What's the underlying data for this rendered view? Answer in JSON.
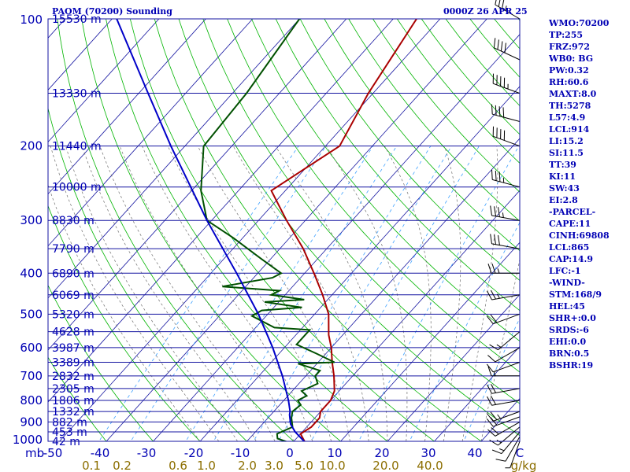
{
  "header": {
    "station": "PAOM (70200) Sounding",
    "time": "0000Z 26 APR 25"
  },
  "indices": [
    "WMO:70200",
    "TP:255",
    "FRZ:972",
    "WB0: BG",
    "PW:0.32",
    "RH:60.6",
    "MAXT:8.0",
    "TH:5278",
    "L57:4.9",
    "LCL:914",
    "LI:15.2",
    "SI:11.5",
    "TT:39",
    "KI:11",
    "SW:43",
    "EI:2.8",
    "-PARCEL-",
    "CAPE:11",
    "CINH:69808",
    "LCL:865",
    "CAP:14.9",
    "LFC:-1",
    "-WIND-",
    "STM:168/9",
    "HEL:45",
    "SHR+:0.0",
    "SRDS:-6",
    "EHI:0.0",
    "BRN:0.5",
    "BSHR:19"
  ],
  "colors": {
    "isobar": "#1414a0",
    "isotherm": "#1414a0",
    "dry_adiabat": "#00b400",
    "moist_adiabat": "#707070",
    "mixing_ratio": "#3ca0ff",
    "temperature": "#aa0000",
    "dewpoint": "#005000",
    "parcel": "#0000c8",
    "text": "#0000b4",
    "mixing_label": "#8c6e00",
    "wind": "#000000"
  },
  "chart_data": {
    "type": "line",
    "title": "PAOM (70200) Sounding",
    "xlabel": "",
    "ylabel": "mb",
    "pressure_levels": [
      100,
      200,
      300,
      400,
      500,
      600,
      700,
      800,
      900,
      1000
    ],
    "pressure_ticks": [
      "100",
      "200",
      "300",
      "400",
      "500",
      "600",
      "700",
      "800",
      "900",
      "1000"
    ],
    "extra_isobars": [
      150,
      250,
      350,
      450,
      550,
      650,
      750,
      850,
      950
    ],
    "temperature_ticks": [
      "-50",
      "-40",
      "-30",
      "-20",
      "-10",
      "0",
      "10",
      "20",
      "30",
      "40",
      "C"
    ],
    "mixing_ratio_ticks": [
      "0.1",
      "0.2",
      "0.6",
      "1.0",
      "2.0",
      "3.0",
      "5.0",
      "10.0",
      "20.0",
      "40.0",
      "g/kg"
    ],
    "height_labels": [
      {
        "p": 100,
        "label": "15530 m"
      },
      {
        "p": 150,
        "label": "13330 m"
      },
      {
        "p": 200,
        "label": "11440 m"
      },
      {
        "p": 250,
        "label": "10000 m"
      },
      {
        "p": 300,
        "label": "8830 m"
      },
      {
        "p": 350,
        "label": "7790 m"
      },
      {
        "p": 400,
        "label": "6890 m"
      },
      {
        "p": 450,
        "label": "6069 m"
      },
      {
        "p": 500,
        "label": "5320 m"
      },
      {
        "p": 550,
        "label": "4628 m"
      },
      {
        "p": 600,
        "label": "3987 m"
      },
      {
        "p": 650,
        "label": "3389 m"
      },
      {
        "p": 700,
        "label": "2832 m"
      },
      {
        "p": 750,
        "label": "2305 m"
      },
      {
        "p": 800,
        "label": "1806 m"
      },
      {
        "p": 850,
        "label": "1332 m"
      },
      {
        "p": 900,
        "label": "882 m"
      },
      {
        "p": 950,
        "label": "453 m"
      },
      {
        "p": 1000,
        "label": "42 m"
      }
    ],
    "series": [
      {
        "name": "Temperature",
        "points": [
          {
            "p": 1005,
            "t": 2.6
          },
          {
            "p": 960,
            "t": 0.0
          },
          {
            "p": 925,
            "t": 1.0
          },
          {
            "p": 880,
            "t": 1.0
          },
          {
            "p": 850,
            "t": 0.0
          },
          {
            "p": 800,
            "t": 0.0
          },
          {
            "p": 760,
            "t": -1.0
          },
          {
            "p": 700,
            "t": -4.0
          },
          {
            "p": 650,
            "t": -7.0
          },
          {
            "p": 600,
            "t": -10.0
          },
          {
            "p": 560,
            "t": -13.0
          },
          {
            "p": 500,
            "t": -17.0
          },
          {
            "p": 450,
            "t": -22.0
          },
          {
            "p": 400,
            "t": -28.0
          },
          {
            "p": 350,
            "t": -35.0
          },
          {
            "p": 300,
            "t": -44.0
          },
          {
            "p": 255,
            "t": -53.0
          },
          {
            "p": 200,
            "t": -47.0
          },
          {
            "p": 150,
            "t": -51.0
          },
          {
            "p": 100,
            "t": -55.0
          }
        ]
      },
      {
        "name": "Dewpoint",
        "points": [
          {
            "p": 1005,
            "t": -1.0
          },
          {
            "p": 985,
            "t": -4.0
          },
          {
            "p": 960,
            "t": -5.0
          },
          {
            "p": 925,
            "t": -3.0
          },
          {
            "p": 880,
            "t": -5.0
          },
          {
            "p": 850,
            "t": -6.0
          },
          {
            "p": 820,
            "t": -5.5
          },
          {
            "p": 800,
            "t": -7.0
          },
          {
            "p": 780,
            "t": -6.0
          },
          {
            "p": 760,
            "t": -8.0
          },
          {
            "p": 730,
            "t": -6.0
          },
          {
            "p": 700,
            "t": -8.0
          },
          {
            "p": 680,
            "t": -8.0
          },
          {
            "p": 655,
            "t": -14.0
          },
          {
            "p": 650,
            "t": -6.5
          },
          {
            "p": 620,
            "t": -12.0
          },
          {
            "p": 590,
            "t": -18.0
          },
          {
            "p": 545,
            "t": -18.0
          },
          {
            "p": 538,
            "t": -26.0
          },
          {
            "p": 505,
            "t": -33.0
          },
          {
            "p": 490,
            "t": -32.0
          },
          {
            "p": 482,
            "t": -24.0
          },
          {
            "p": 468,
            "t": -33.0
          },
          {
            "p": 462,
            "t": -25.0
          },
          {
            "p": 450,
            "t": -33.0
          },
          {
            "p": 440,
            "t": -32.0
          },
          {
            "p": 430,
            "t": -45.0
          },
          {
            "p": 410,
            "t": -36.0
          },
          {
            "p": 400,
            "t": -35.0
          },
          {
            "p": 370,
            "t": -42.0
          },
          {
            "p": 330,
            "t": -52.0
          },
          {
            "p": 300,
            "t": -61.0
          },
          {
            "p": 255,
            "t": -68.0
          },
          {
            "p": 200,
            "t": -76.0
          },
          {
            "p": 150,
            "t": -77.0
          },
          {
            "p": 100,
            "t": -80.0
          }
        ]
      },
      {
        "name": "Parcel",
        "points": [
          {
            "p": 1005,
            "t": 2.6
          },
          {
            "p": 950,
            "t": -1.5
          },
          {
            "p": 910,
            "t": -4.0
          },
          {
            "p": 865,
            "t": -6.0
          },
          {
            "p": 850,
            "t": -6.5
          },
          {
            "p": 800,
            "t": -9.0
          },
          {
            "p": 700,
            "t": -15.0
          },
          {
            "p": 600,
            "t": -22.5
          },
          {
            "p": 500,
            "t": -32.0
          },
          {
            "p": 400,
            "t": -44.5
          },
          {
            "p": 300,
            "t": -61.0
          },
          {
            "p": 200,
            "t": -83.0
          },
          {
            "p": 150,
            "t": -98.0
          },
          {
            "p": 100,
            "t": -119.0
          }
        ]
      }
    ],
    "wind_barbs": [
      {
        "p": 1000,
        "dir": 200,
        "spd": 5
      },
      {
        "p": 975,
        "dir": 210,
        "spd": 10
      },
      {
        "p": 950,
        "dir": 220,
        "spd": 15
      },
      {
        "p": 925,
        "dir": 230,
        "spd": 15
      },
      {
        "p": 900,
        "dir": 240,
        "spd": 20
      },
      {
        "p": 875,
        "dir": 250,
        "spd": 20
      },
      {
        "p": 850,
        "dir": 250,
        "spd": 25
      },
      {
        "p": 800,
        "dir": 260,
        "spd": 20
      },
      {
        "p": 750,
        "dir": 260,
        "spd": 20
      },
      {
        "p": 700,
        "dir": 270,
        "spd": 15
      },
      {
        "p": 650,
        "dir": 250,
        "spd": 10
      },
      {
        "p": 600,
        "dir": 240,
        "spd": 10
      },
      {
        "p": 550,
        "dir": 230,
        "spd": 15
      },
      {
        "p": 500,
        "dir": 250,
        "spd": 20
      },
      {
        "p": 450,
        "dir": 260,
        "spd": 25
      },
      {
        "p": 400,
        "dir": 270,
        "spd": 25
      },
      {
        "p": 350,
        "dir": 280,
        "spd": 30
      },
      {
        "p": 300,
        "dir": 280,
        "spd": 35
      },
      {
        "p": 250,
        "dir": 285,
        "spd": 35
      },
      {
        "p": 200,
        "dir": 290,
        "spd": 40
      },
      {
        "p": 175,
        "dir": 285,
        "spd": 40
      },
      {
        "p": 150,
        "dir": 290,
        "spd": 45
      },
      {
        "p": 125,
        "dir": 295,
        "spd": 40
      },
      {
        "p": 100,
        "dir": 300,
        "spd": 35
      }
    ],
    "grid": true
  }
}
